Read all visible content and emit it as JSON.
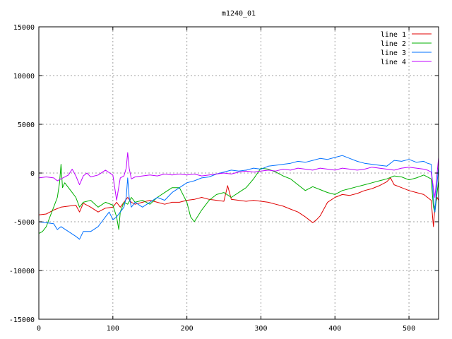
{
  "chart_data": {
    "type": "line",
    "title": "m1240_01",
    "xlabel": "",
    "ylabel": "",
    "xlim": [
      0,
      540
    ],
    "ylim": [
      -15000,
      15000
    ],
    "x_ticks": [
      0,
      100,
      200,
      300,
      400,
      500
    ],
    "y_ticks": [
      -15000,
      -10000,
      -5000,
      0,
      5000,
      10000,
      15000
    ],
    "grid": true,
    "legend_position": "top-right",
    "series": [
      {
        "name": "line 1",
        "color": "#e00000",
        "x": [
          0,
          10,
          20,
          30,
          40,
          50,
          55,
          60,
          70,
          80,
          90,
          100,
          105,
          110,
          115,
          120,
          125,
          130,
          140,
          150,
          160,
          170,
          180,
          190,
          200,
          210,
          220,
          230,
          240,
          250,
          255,
          260,
          270,
          280,
          290,
          300,
          310,
          320,
          330,
          340,
          350,
          360,
          365,
          370,
          375,
          380,
          390,
          400,
          410,
          420,
          430,
          440,
          450,
          460,
          470,
          475,
          480,
          490,
          500,
          510,
          520,
          525,
          530,
          533,
          535,
          538,
          540
        ],
        "y": [
          -4300,
          -4200,
          -3800,
          -3500,
          -3400,
          -3300,
          -4000,
          -3100,
          -3500,
          -4000,
          -3600,
          -3500,
          -3000,
          -3500,
          -3000,
          -2500,
          -3000,
          -3200,
          -3000,
          -2800,
          -3000,
          -3200,
          -3000,
          -3000,
          -2800,
          -2700,
          -2500,
          -2700,
          -2800,
          -2900,
          -1300,
          -2700,
          -2800,
          -2900,
          -2800,
          -2900,
          -3000,
          -3200,
          -3400,
          -3700,
          -4000,
          -4500,
          -4800,
          -5100,
          -4800,
          -4400,
          -3000,
          -2500,
          -2200,
          -2300,
          -2100,
          -1800,
          -1600,
          -1300,
          -900,
          -500,
          -1200,
          -1500,
          -1800,
          -2000,
          -2200,
          -2500,
          -2800,
          -5500,
          -3500,
          -2500,
          -2800
        ]
      },
      {
        "name": "line 2",
        "color": "#00b000",
        "x": [
          0,
          5,
          10,
          15,
          20,
          25,
          28,
          30,
          32,
          35,
          40,
          45,
          50,
          55,
          60,
          70,
          80,
          90,
          100,
          105,
          108,
          110,
          115,
          120,
          125,
          130,
          140,
          150,
          160,
          170,
          180,
          190,
          200,
          205,
          210,
          220,
          230,
          240,
          250,
          260,
          270,
          280,
          290,
          300,
          310,
          320,
          330,
          340,
          350,
          360,
          370,
          380,
          390,
          400,
          410,
          420,
          430,
          440,
          450,
          460,
          470,
          480,
          490,
          500,
          510,
          520,
          530,
          533,
          535,
          538,
          540
        ],
        "y": [
          -6200,
          -6000,
          -5500,
          -4500,
          -3500,
          -2500,
          -1000,
          900,
          -1500,
          -1000,
          -1500,
          -2000,
          -2500,
          -3500,
          -3000,
          -2800,
          -3500,
          -3000,
          -3300,
          -4500,
          -5800,
          -4000,
          -3000,
          -3200,
          -2500,
          -3000,
          -2800,
          -3200,
          -2500,
          -2000,
          -1500,
          -1500,
          -3000,
          -4500,
          -5000,
          -3800,
          -2800,
          -2200,
          -2000,
          -2500,
          -2000,
          -1500,
          -600,
          500,
          400,
          100,
          -300,
          -600,
          -1200,
          -1800,
          -1400,
          -1700,
          -2000,
          -2200,
          -1800,
          -1600,
          -1400,
          -1200,
          -1000,
          -800,
          -600,
          -300,
          -400,
          -700,
          -500,
          -200,
          -600,
          -3500,
          -4000,
          -2000,
          -800
        ]
      },
      {
        "name": "line 3",
        "color": "#0070ff",
        "x": [
          0,
          10,
          20,
          25,
          30,
          40,
          50,
          55,
          60,
          70,
          80,
          85,
          90,
          95,
          100,
          105,
          110,
          115,
          118,
          120,
          122,
          125,
          130,
          140,
          150,
          160,
          170,
          180,
          190,
          200,
          210,
          220,
          230,
          240,
          250,
          260,
          270,
          280,
          290,
          300,
          310,
          320,
          330,
          340,
          350,
          360,
          370,
          380,
          390,
          400,
          410,
          420,
          430,
          440,
          450,
          460,
          470,
          480,
          490,
          500,
          510,
          520,
          525,
          530,
          533,
          535,
          538,
          540
        ],
        "y": [
          -5000,
          -5100,
          -5200,
          -5800,
          -5500,
          -6000,
          -6500,
          -6800,
          -6000,
          -6000,
          -5500,
          -5000,
          -4500,
          -4000,
          -4800,
          -4500,
          -4000,
          -3500,
          -2500,
          -500,
          -2500,
          -3500,
          -3000,
          -3500,
          -3000,
          -2500,
          -2800,
          -2000,
          -1500,
          -1000,
          -800,
          -500,
          -400,
          -100,
          100,
          300,
          200,
          300,
          500,
          400,
          700,
          800,
          900,
          1000,
          1200,
          1100,
          1300,
          1500,
          1400,
          1600,
          1800,
          1500,
          1200,
          1000,
          900,
          800,
          700,
          1300,
          1200,
          1400,
          1100,
          1200,
          1000,
          900,
          -2500,
          -4000,
          -1000,
          700
        ]
      },
      {
        "name": "line 4",
        "color": "#c000ff",
        "x": [
          0,
          10,
          20,
          25,
          30,
          40,
          45,
          50,
          55,
          60,
          65,
          70,
          80,
          90,
          100,
          105,
          110,
          115,
          118,
          120,
          122,
          125,
          130,
          140,
          150,
          160,
          170,
          180,
          190,
          200,
          210,
          220,
          230,
          240,
          250,
          260,
          270,
          280,
          290,
          300,
          310,
          320,
          330,
          340,
          350,
          360,
          370,
          380,
          390,
          400,
          410,
          420,
          430,
          440,
          450,
          460,
          470,
          480,
          490,
          500,
          510,
          520,
          525,
          530,
          533,
          535,
          538,
          540
        ],
        "y": [
          -500,
          -400,
          -500,
          -800,
          -600,
          -200,
          400,
          -300,
          -1200,
          -300,
          0,
          -400,
          -200,
          300,
          -200,
          -2800,
          -500,
          -300,
          500,
          2100,
          500,
          -600,
          -400,
          -300,
          -200,
          -300,
          -100,
          -200,
          -100,
          -200,
          -100,
          -300,
          -200,
          -100,
          0,
          -100,
          100,
          200,
          100,
          200,
          300,
          200,
          400,
          300,
          500,
          400,
          300,
          500,
          400,
          300,
          500,
          400,
          300,
          400,
          600,
          500,
          400,
          300,
          500,
          600,
          500,
          400,
          300,
          100,
          -1500,
          -2500,
          0,
          1600
        ]
      }
    ]
  }
}
